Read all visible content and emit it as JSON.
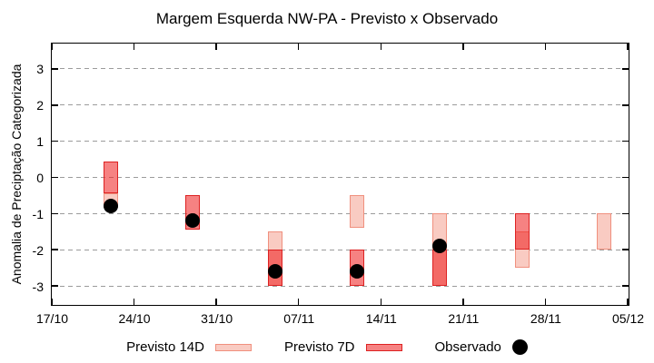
{
  "chart_data": {
    "type": "bar",
    "subtype": "range-bars-with-observed-points",
    "title": "Margem Esquerda NW-PA - Previsto x Observado",
    "xlabel": "",
    "ylabel": "Anomalia de Preciptação Categorizada",
    "ylim": [
      -3.5,
      3.7
    ],
    "x_range": [
      "17/10",
      "05/12"
    ],
    "x_ticks": [
      "17/10",
      "24/10",
      "31/10",
      "07/11",
      "14/11",
      "21/11",
      "28/11",
      "05/12"
    ],
    "y_ticks": [
      3,
      2,
      1,
      0,
      -1,
      -2,
      -3
    ],
    "grid": "horizontal-dashed-gray",
    "legend_position": "bottom-center",
    "series": [
      {
        "name": "Previsto 14D",
        "type": "range-bar",
        "color_fill": "#f9cbc2",
        "color_border": "#f0907e",
        "points": [
          {
            "date": "22/10",
            "high": -0.45,
            "low": -0.85
          },
          {
            "date": "05/11",
            "high": -1.5,
            "low": -3.0
          },
          {
            "date": "12/11",
            "high": -0.5,
            "low": -1.4
          },
          {
            "date": "19/11",
            "high": -1.0,
            "low": -3.0
          },
          {
            "date": "26/11",
            "high": -1.5,
            "low": -2.5
          },
          {
            "date": "03/12",
            "high": -1.0,
            "low": -2.0
          }
        ]
      },
      {
        "name": "Previsto 7D",
        "type": "range-bar",
        "color_fill": "#ee1c1c",
        "fill_alpha": 0.55,
        "color_border": "#dd2222",
        "points": [
          {
            "date": "22/10",
            "high": 0.45,
            "low": -0.45
          },
          {
            "date": "29/10",
            "high": -0.5,
            "low": -1.45
          },
          {
            "date": "05/11",
            "high": -2.0,
            "low": -3.0
          },
          {
            "date": "12/11",
            "high": -2.0,
            "low": -3.0
          },
          {
            "date": "19/11",
            "high": -2.0,
            "low": -3.0
          },
          {
            "date": "26/11",
            "high": -1.0,
            "low": -2.0
          }
        ]
      },
      {
        "name": "Observado",
        "type": "scatter",
        "color": "#000000",
        "points": [
          {
            "date": "22/10",
            "value": -0.8
          },
          {
            "date": "29/10",
            "value": -1.2
          },
          {
            "date": "05/11",
            "value": -2.6
          },
          {
            "date": "12/11",
            "value": -2.6
          },
          {
            "date": "19/11",
            "value": -1.9
          }
        ]
      }
    ]
  }
}
